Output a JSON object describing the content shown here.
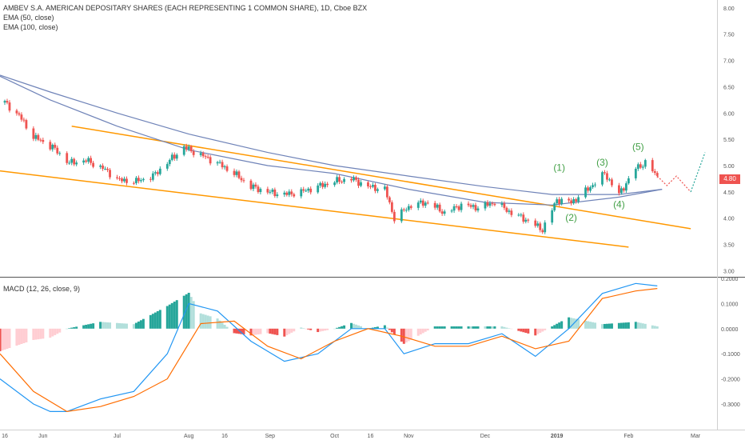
{
  "header": {
    "title": "AMBEV S.A. AMERICAN DEPOSITARY SHARES (EACH REPRESENTING 1 COMMON SHARE), 1D, Cboe BZX",
    "ema50": "EMA (50, close)",
    "ema100": "EMA (100, close)",
    "macd": "MACD (12, 26, close, 9)"
  },
  "chart_data": [
    {
      "type": "candlestick",
      "title": "AMBEV S.A. AMERICAN DEPOSITARY SHARES (EACH REPRESENTING 1 COMMON SHARE), 1D, Cboe BZX",
      "x_tick_labels": [
        "16",
        "Jun",
        "Jul",
        "Aug",
        "16",
        "Sep",
        "Oct",
        "16",
        "Nov",
        "Dec",
        "2019",
        "Feb",
        "Mar"
      ],
      "y_tick_labels": [
        "8.00",
        "7.50",
        "7.00",
        "6.50",
        "6.00",
        "5.50",
        "5.00",
        "4.50",
        "4.00",
        "3.50",
        "3.00"
      ],
      "ylim": [
        2.9,
        8.15
      ],
      "last_price": "4.80",
      "price_series": [
        {
          "d": "2018-05-16",
          "v": 6.2
        },
        {
          "d": "2018-05-22",
          "v": 5.95
        },
        {
          "d": "2018-05-28",
          "v": 5.55
        },
        {
          "d": "2018-06-05",
          "v": 5.35
        },
        {
          "d": "2018-06-12",
          "v": 5.05
        },
        {
          "d": "2018-06-19",
          "v": 5.1
        },
        {
          "d": "2018-06-26",
          "v": 4.95
        },
        {
          "d": "2018-07-03",
          "v": 4.72
        },
        {
          "d": "2018-07-10",
          "v": 4.7
        },
        {
          "d": "2018-07-17",
          "v": 4.8
        },
        {
          "d": "2018-07-24",
          "v": 5.1
        },
        {
          "d": "2018-07-30",
          "v": 5.35
        },
        {
          "d": "2018-08-06",
          "v": 5.2
        },
        {
          "d": "2018-08-13",
          "v": 5.05
        },
        {
          "d": "2018-08-20",
          "v": 4.85
        },
        {
          "d": "2018-08-27",
          "v": 4.6
        },
        {
          "d": "2018-09-03",
          "v": 4.5
        },
        {
          "d": "2018-09-10",
          "v": 4.45
        },
        {
          "d": "2018-09-17",
          "v": 4.5
        },
        {
          "d": "2018-09-24",
          "v": 4.6
        },
        {
          "d": "2018-10-01",
          "v": 4.7
        },
        {
          "d": "2018-10-08",
          "v": 4.75
        },
        {
          "d": "2018-10-15",
          "v": 4.6
        },
        {
          "d": "2018-10-22",
          "v": 4.55
        },
        {
          "d": "2018-10-26",
          "v": 4.0
        },
        {
          "d": "2018-11-02",
          "v": 4.25
        },
        {
          "d": "2018-11-09",
          "v": 4.3
        },
        {
          "d": "2018-11-16",
          "v": 4.1
        },
        {
          "d": "2018-11-23",
          "v": 4.25
        },
        {
          "d": "2018-11-30",
          "v": 4.2
        },
        {
          "d": "2018-12-07",
          "v": 4.3
        },
        {
          "d": "2018-12-14",
          "v": 4.1
        },
        {
          "d": "2018-12-21",
          "v": 3.95
        },
        {
          "d": "2018-12-27",
          "v": 3.78
        },
        {
          "d": "2019-01-02",
          "v": 4.35
        },
        {
          "d": "2019-01-08",
          "v": 4.3
        },
        {
          "d": "2019-01-15",
          "v": 4.55
        },
        {
          "d": "2019-01-22",
          "v": 4.85
        },
        {
          "d": "2019-01-28",
          "v": 4.45
        },
        {
          "d": "2019-02-04",
          "v": 4.95
        },
        {
          "d": "2019-02-08",
          "v": 5.05
        },
        {
          "d": "2019-02-13",
          "v": 4.8
        }
      ],
      "ema50": [
        {
          "d": "2018-05-14",
          "v": 6.7
        },
        {
          "d": "2018-06-04",
          "v": 6.25
        },
        {
          "d": "2018-07-02",
          "v": 5.75
        },
        {
          "d": "2018-08-01",
          "v": 5.3
        },
        {
          "d": "2018-09-03",
          "v": 5.0
        },
        {
          "d": "2018-10-01",
          "v": 4.85
        },
        {
          "d": "2018-11-01",
          "v": 4.55
        },
        {
          "d": "2018-12-03",
          "v": 4.3
        },
        {
          "d": "2018-12-31",
          "v": 4.25
        },
        {
          "d": "2019-01-28",
          "v": 4.4
        },
        {
          "d": "2019-02-15",
          "v": 4.55
        }
      ],
      "ema100": [
        {
          "d": "2018-05-14",
          "v": 6.72
        },
        {
          "d": "2018-06-04",
          "v": 6.4
        },
        {
          "d": "2018-07-02",
          "v": 6.0
        },
        {
          "d": "2018-08-01",
          "v": 5.6
        },
        {
          "d": "2018-09-03",
          "v": 5.25
        },
        {
          "d": "2018-10-01",
          "v": 5.0
        },
        {
          "d": "2018-11-01",
          "v": 4.8
        },
        {
          "d": "2018-12-03",
          "v": 4.6
        },
        {
          "d": "2018-12-31",
          "v": 4.45
        },
        {
          "d": "2019-01-28",
          "v": 4.45
        },
        {
          "d": "2019-02-15",
          "v": 4.55
        }
      ],
      "trendlines": [
        {
          "color": "#ff9800",
          "points": [
            {
              "d": "2018-06-13",
              "v": 5.75
            },
            {
              "d": "2019-02-27",
              "v": 3.8
            }
          ]
        },
        {
          "color": "#ff9800",
          "points": [
            {
              "d": "2018-05-14",
              "v": 4.9
            },
            {
              "d": "2019-02-01",
              "v": 3.45
            }
          ]
        }
      ],
      "wave_labels": [
        {
          "label": "(1)",
          "d": "2019-01-03",
          "v": 4.9
        },
        {
          "label": "(2)",
          "d": "2019-01-08",
          "v": 3.95
        },
        {
          "label": "(3)",
          "d": "2019-01-21",
          "v": 5.0
        },
        {
          "label": "(4)",
          "d": "2019-01-28",
          "v": 4.2
        },
        {
          "label": "(5)",
          "d": "2019-02-05",
          "v": 5.3
        }
      ],
      "projection": {
        "down": [
          {
            "d": "2019-02-13",
            "v": 4.8
          },
          {
            "d": "2019-02-17",
            "v": 4.62
          },
          {
            "d": "2019-02-21",
            "v": 4.8
          },
          {
            "d": "2019-02-27",
            "v": 4.5
          }
        ],
        "up": [
          {
            "d": "2019-02-27",
            "v": 4.5
          },
          {
            "d": "2019-03-05",
            "v": 5.25
          }
        ]
      },
      "colors": {
        "up": "#26a69a",
        "down": "#ef5350",
        "ema": "#6f83b8",
        "trend": "#ff9800",
        "wave": "#43a047"
      }
    },
    {
      "type": "bar+line",
      "title": "MACD (12, 26, close, 9)",
      "y_tick_labels": [
        "0.2000",
        "0.1000",
        "0.0000",
        "-0.1000",
        "-0.2000",
        "-0.3000"
      ],
      "ylim": [
        -0.37,
        0.2
      ],
      "macd": [
        {
          "d": "2018-05-14",
          "v": -0.2
        },
        {
          "d": "2018-05-28",
          "v": -0.3
        },
        {
          "d": "2018-06-04",
          "v": -0.33
        },
        {
          "d": "2018-06-11",
          "v": -0.33
        },
        {
          "d": "2018-06-25",
          "v": -0.28
        },
        {
          "d": "2018-07-09",
          "v": -0.25
        },
        {
          "d": "2018-07-23",
          "v": -0.1
        },
        {
          "d": "2018-08-01",
          "v": 0.1
        },
        {
          "d": "2018-08-13",
          "v": 0.07
        },
        {
          "d": "2018-08-27",
          "v": -0.05
        },
        {
          "d": "2018-09-10",
          "v": -0.13
        },
        {
          "d": "2018-09-24",
          "v": -0.1
        },
        {
          "d": "2018-10-08",
          "v": 0.0
        },
        {
          "d": "2018-10-22",
          "v": 0.0
        },
        {
          "d": "2018-10-30",
          "v": -0.1
        },
        {
          "d": "2018-11-12",
          "v": -0.06
        },
        {
          "d": "2018-11-26",
          "v": -0.06
        },
        {
          "d": "2018-12-10",
          "v": -0.02
        },
        {
          "d": "2018-12-24",
          "v": -0.11
        },
        {
          "d": "2019-01-07",
          "v": 0.0
        },
        {
          "d": "2019-01-21",
          "v": 0.14
        },
        {
          "d": "2019-02-04",
          "v": 0.18
        },
        {
          "d": "2019-02-13",
          "v": 0.17
        }
      ],
      "signal": [
        {
          "d": "2018-05-14",
          "v": -0.1
        },
        {
          "d": "2018-05-28",
          "v": -0.25
        },
        {
          "d": "2018-06-11",
          "v": -0.33
        },
        {
          "d": "2018-06-25",
          "v": -0.31
        },
        {
          "d": "2018-07-09",
          "v": -0.27
        },
        {
          "d": "2018-07-23",
          "v": -0.2
        },
        {
          "d": "2018-08-06",
          "v": 0.02
        },
        {
          "d": "2018-08-20",
          "v": 0.03
        },
        {
          "d": "2018-09-03",
          "v": -0.07
        },
        {
          "d": "2018-09-17",
          "v": -0.12
        },
        {
          "d": "2018-10-01",
          "v": -0.05
        },
        {
          "d": "2018-10-15",
          "v": 0.0
        },
        {
          "d": "2018-10-29",
          "v": -0.03
        },
        {
          "d": "2018-11-12",
          "v": -0.07
        },
        {
          "d": "2018-11-26",
          "v": -0.07
        },
        {
          "d": "2018-12-10",
          "v": -0.03
        },
        {
          "d": "2018-12-24",
          "v": -0.08
        },
        {
          "d": "2019-01-07",
          "v": -0.05
        },
        {
          "d": "2019-01-21",
          "v": 0.12
        },
        {
          "d": "2019-02-04",
          "v": 0.15
        },
        {
          "d": "2019-02-13",
          "v": 0.16
        }
      ],
      "colors": {
        "macd": "#2196f3",
        "signal": "#ff6d00",
        "hist_pos_strong": "#26a69a",
        "hist_pos_weak": "#b2dfdb",
        "hist_neg_strong": "#ef5350",
        "hist_neg_weak": "#ffcdd2"
      }
    }
  ]
}
